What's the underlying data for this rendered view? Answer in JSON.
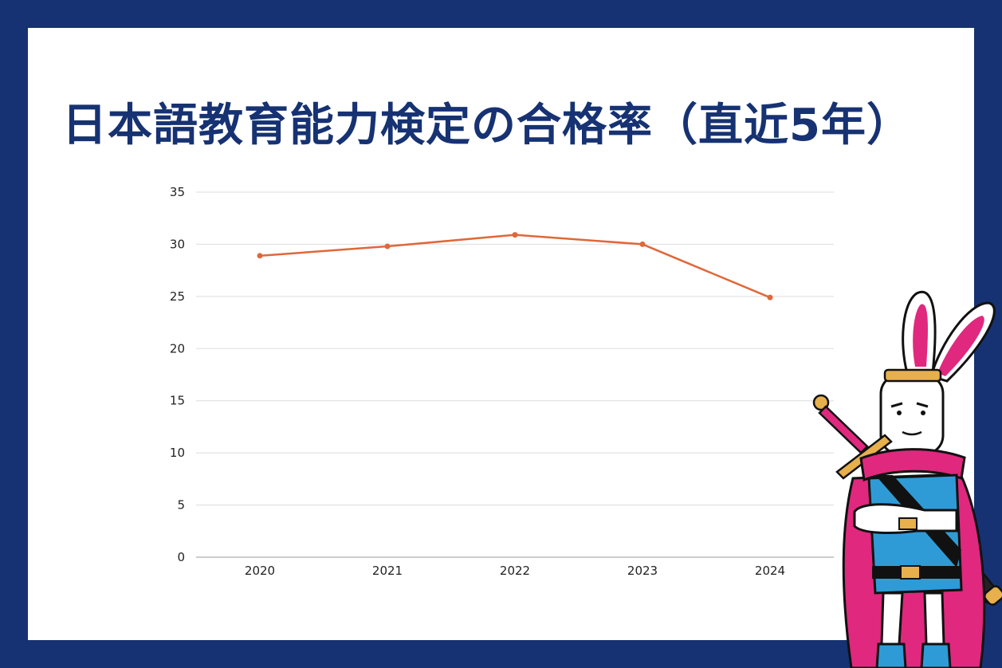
{
  "header": {
    "title": "日本語教育能力検定の合格率（直近5年）"
  },
  "colors": {
    "frame": "#163272",
    "line": "#e0673a",
    "grid": "#dddddd",
    "mascot_cape": "#e0287e",
    "mascot_tunic": "#2f9bd6"
  },
  "mascot": {
    "icon": "rabbit-knight-mascot-icon"
  },
  "chart_data": {
    "type": "line",
    "title": "",
    "xlabel": "",
    "ylabel": "",
    "categories": [
      "2020",
      "2021",
      "2022",
      "2023",
      "2024"
    ],
    "series": [
      {
        "values": [
          28.9,
          29.8,
          30.9,
          30.0,
          24.9
        ]
      }
    ],
    "ylim": [
      0,
      35
    ],
    "yticks": [
      "0",
      "5",
      "10",
      "15",
      "20",
      "25",
      "30",
      "35"
    ],
    "grid": true,
    "legend": "none"
  }
}
